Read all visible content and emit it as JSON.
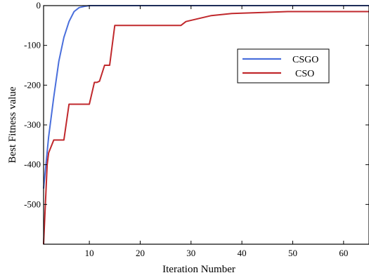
{
  "chart_data": {
    "type": "line",
    "title": "",
    "xlabel": "Iteration Number",
    "ylabel": "Best Fitness value",
    "xlim": [
      1,
      65
    ],
    "ylim": [
      -600,
      0
    ],
    "x_ticks": [
      10,
      20,
      30,
      40,
      50,
      60
    ],
    "x_tick_labels": [
      "10",
      "20",
      "30",
      "40",
      "50",
      "60"
    ],
    "y_ticks": [
      0,
      -100,
      -200,
      -300,
      -400,
      -500
    ],
    "y_tick_labels": [
      "0",
      "-100",
      "-200",
      "-300",
      "-400",
      "-500"
    ],
    "grid": false,
    "legend_position": "upper-right",
    "series": [
      {
        "name": "CSGO",
        "color": "#4a6fdc",
        "x": [
          1,
          2,
          3,
          4,
          5,
          6,
          7,
          8,
          9,
          10,
          12,
          15,
          20,
          30,
          40,
          50,
          60,
          65
        ],
        "y": [
          -460,
          -330,
          -230,
          -140,
          -80,
          -40,
          -15,
          -5,
          -2,
          0,
          0,
          0,
          0,
          0,
          0,
          0,
          0,
          0
        ]
      },
      {
        "name": "CSO",
        "color": "#c0282c",
        "x": [
          1,
          1.7,
          2,
          3,
          4,
          5,
          6,
          10,
          11,
          11.5,
          12,
          13,
          14,
          15,
          28,
          29,
          34,
          38,
          49,
          65
        ],
        "y": [
          -600,
          -400,
          -370,
          -338,
          -338,
          -338,
          -248,
          -248,
          -193,
          -193,
          -190,
          -150,
          -150,
          -50,
          -50,
          -40,
          -25,
          -20,
          -15,
          -15
        ]
      }
    ]
  }
}
